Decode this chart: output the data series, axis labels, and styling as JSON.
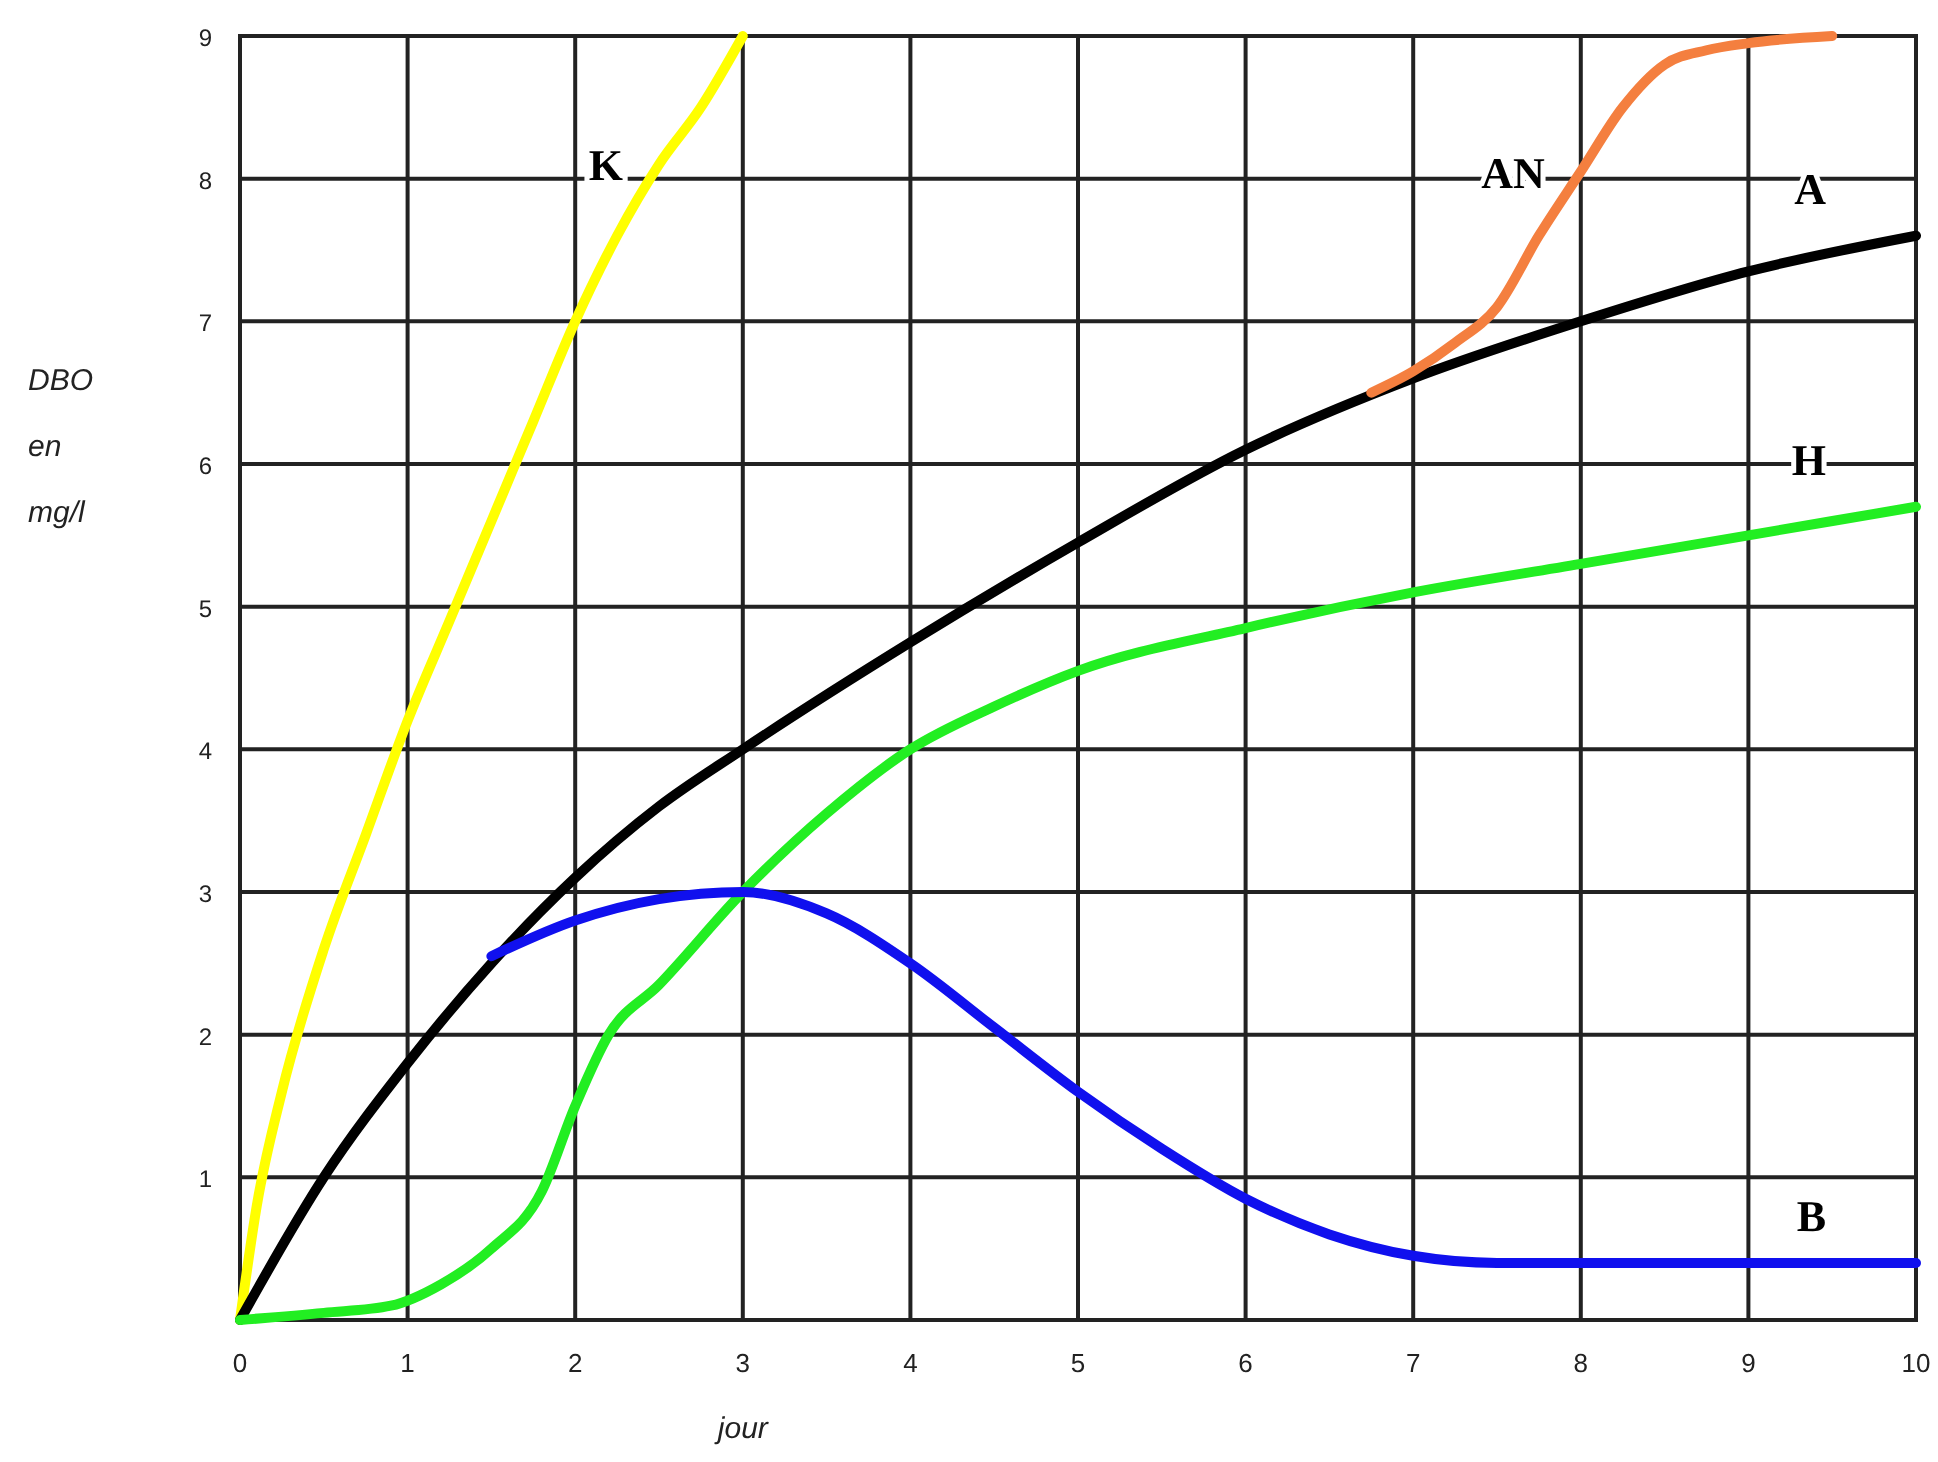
{
  "chart_data": {
    "type": "line",
    "xlabel": "jour",
    "ylabel": "DBO en mg/l",
    "xlim": [
      0,
      10
    ],
    "xticks": [
      0,
      1,
      2,
      3,
      4,
      5,
      6,
      7,
      8,
      9,
      10
    ],
    "ylim": [
      0,
      9
    ],
    "yticks": [
      1,
      2,
      3,
      4,
      5,
      6,
      7,
      8,
      9
    ],
    "grid": true,
    "marker": "none",
    "line_style": "solid",
    "series": [
      {
        "name": "K",
        "color": "#ffff00",
        "x": [
          0,
          0.1,
          0.25,
          0.5,
          0.75,
          1,
          1.25,
          1.5,
          1.75,
          2,
          2.25,
          2.5,
          2.75,
          3
        ],
        "values": [
          0,
          0.8,
          1.6,
          2.6,
          3.4,
          4.2,
          4.9,
          5.6,
          6.3,
          7,
          7.6,
          8.1,
          8.5,
          9
        ]
      },
      {
        "name": "A",
        "color": "#000000",
        "x": [
          0,
          0.5,
          1,
          1.5,
          2,
          2.5,
          3,
          4,
          5,
          6,
          7,
          8,
          9,
          10
        ],
        "values": [
          0,
          1,
          1.8,
          2.5,
          3.1,
          3.6,
          4,
          4.75,
          5.45,
          6.1,
          6.6,
          7,
          7.35,
          7.6
        ]
      },
      {
        "name": "AN",
        "color": "#f47f3f",
        "x": [
          6.75,
          7,
          7.25,
          7.5,
          7.75,
          8,
          8.25,
          8.5,
          8.75,
          9,
          9.5
        ],
        "values": [
          6.5,
          6.65,
          6.85,
          7.1,
          7.6,
          8.05,
          8.5,
          8.8,
          8.9,
          8.95,
          9
        ]
      },
      {
        "name": "H",
        "color": "#22ee22",
        "x": [
          0,
          0.5,
          0.9,
          1.2,
          1.5,
          1.8,
          2,
          2.2,
          2.5,
          3,
          3.5,
          4,
          4.5,
          5,
          6,
          7,
          8,
          9,
          10
        ],
        "values": [
          0,
          0.05,
          0.1,
          0.25,
          0.5,
          0.9,
          1.5,
          2,
          2.35,
          3,
          3.55,
          4,
          4.3,
          4.55,
          4.85,
          5.1,
          5.3,
          5.5,
          5.7
        ]
      },
      {
        "name": "B",
        "color": "#1010ee",
        "x": [
          1.5,
          2,
          2.5,
          3,
          3.5,
          4,
          4.5,
          5,
          5.5,
          6,
          6.5,
          7,
          7.5,
          8,
          9,
          10
        ],
        "values": [
          2.55,
          2.8,
          2.95,
          3,
          2.85,
          2.5,
          2.05,
          1.6,
          1.2,
          0.85,
          0.6,
          0.45,
          0.4,
          0.4,
          0.4,
          0.4
        ]
      }
    ]
  }
}
